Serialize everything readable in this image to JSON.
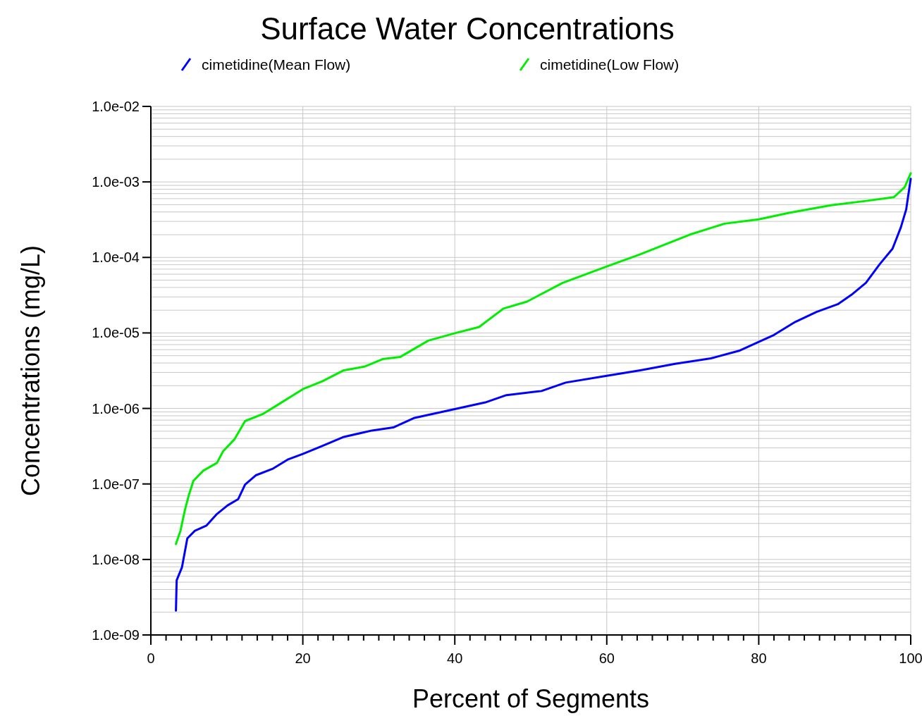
{
  "chart_data": {
    "type": "line",
    "title": "Surface Water Concentrations",
    "xlabel": "Percent of Segments",
    "ylabel": "Concentrations (mg/L)",
    "log": "y",
    "grid": true,
    "legend": "top",
    "line_style": "solid",
    "marker": "none",
    "xlim": [
      0,
      100
    ],
    "ylim": [
      1e-09,
      0.01
    ],
    "xticks": [
      0,
      {
        "value": 2,
        "label": null
      },
      {
        "value": 4,
        "label": null
      },
      {
        "value": 6,
        "label": null
      },
      {
        "value": 8,
        "label": null
      },
      {
        "value": 10,
        "label": null
      },
      {
        "value": 12,
        "label": null
      },
      {
        "value": 14,
        "label": null
      },
      {
        "value": 16,
        "label": null
      },
      {
        "value": 18,
        "label": null
      },
      20,
      {
        "value": 22,
        "label": null
      },
      {
        "value": 24,
        "label": null
      },
      {
        "value": 26,
        "label": null
      },
      {
        "value": 28,
        "label": null
      },
      {
        "value": 30,
        "label": null
      },
      {
        "value": 32,
        "label": null
      },
      {
        "value": 34,
        "label": null
      },
      {
        "value": 36,
        "label": null
      },
      {
        "value": 38,
        "label": null
      },
      40,
      {
        "value": 42,
        "label": null
      },
      {
        "value": 44,
        "label": null
      },
      {
        "value": 46,
        "label": null
      },
      {
        "value": 48,
        "label": null
      },
      {
        "value": 50,
        "label": null
      },
      {
        "value": 52,
        "label": null
      },
      {
        "value": 54,
        "label": null
      },
      {
        "value": 56,
        "label": null
      },
      {
        "value": 58,
        "label": null
      },
      60,
      {
        "value": 62,
        "label": null
      },
      {
        "value": 64,
        "label": null
      },
      {
        "value": 66,
        "label": null
      },
      {
        "value": 68,
        "label": null
      },
      {
        "value": 70,
        "label": null
      },
      {
        "value": 72,
        "label": null
      },
      {
        "value": 74,
        "label": null
      },
      {
        "value": 76,
        "label": null
      },
      {
        "value": 78,
        "label": null
      },
      80,
      {
        "value": 82,
        "label": null
      },
      {
        "value": 84,
        "label": null
      },
      {
        "value": 86,
        "label": null
      },
      {
        "value": 88,
        "label": null
      },
      {
        "value": 90,
        "label": null
      },
      {
        "value": 92,
        "label": null
      },
      {
        "value": 94,
        "label": null
      },
      {
        "value": 96,
        "label": null
      },
      {
        "value": 98,
        "label": null
      },
      100
    ],
    "yticks": [
      {
        "value": 1e-09,
        "label": "1.0e-09"
      },
      {
        "value": 2e-09,
        "label": null
      },
      {
        "value": 3e-09,
        "label": null
      },
      {
        "value": 4e-09,
        "label": null
      },
      {
        "value": 5e-09,
        "label": null
      },
      {
        "value": 6e-09,
        "label": null
      },
      {
        "value": 7e-09,
        "label": null
      },
      {
        "value": 8e-09,
        "label": null
      },
      {
        "value": 9e-09,
        "label": null
      },
      {
        "value": 1e-08,
        "label": "1.0e-08"
      },
      {
        "value": 2e-08,
        "label": null
      },
      {
        "value": 3e-08,
        "label": null
      },
      {
        "value": 4e-08,
        "label": null
      },
      {
        "value": 5e-08,
        "label": null
      },
      {
        "value": 6e-08,
        "label": null
      },
      {
        "value": 7e-08,
        "label": null
      },
      {
        "value": 8e-08,
        "label": null
      },
      {
        "value": 9e-08,
        "label": null
      },
      {
        "value": 1e-07,
        "label": "1.0e-07"
      },
      {
        "value": 2e-07,
        "label": null
      },
      {
        "value": 3e-07,
        "label": null
      },
      {
        "value": 4e-07,
        "label": null
      },
      {
        "value": 5e-07,
        "label": null
      },
      {
        "value": 6e-07,
        "label": null
      },
      {
        "value": 7e-07,
        "label": null
      },
      {
        "value": 8e-07,
        "label": null
      },
      {
        "value": 9e-07,
        "label": null
      },
      {
        "value": 1e-06,
        "label": "1.0e-06"
      },
      {
        "value": 2e-06,
        "label": null
      },
      {
        "value": 3e-06,
        "label": null
      },
      {
        "value": 4e-06,
        "label": null
      },
      {
        "value": 5e-06,
        "label": null
      },
      {
        "value": 6e-06,
        "label": null
      },
      {
        "value": 7e-06,
        "label": null
      },
      {
        "value": 8e-06,
        "label": null
      },
      {
        "value": 9e-06,
        "label": null
      },
      {
        "value": 1e-05,
        "label": "1.0e-05"
      },
      {
        "value": 2e-05,
        "label": null
      },
      {
        "value": 3e-05,
        "label": null
      },
      {
        "value": 4e-05,
        "label": null
      },
      {
        "value": 5e-05,
        "label": null
      },
      {
        "value": 6e-05,
        "label": null
      },
      {
        "value": 7e-05,
        "label": null
      },
      {
        "value": 8e-05,
        "label": null
      },
      {
        "value": 9e-05,
        "label": null
      },
      {
        "value": 0.0001,
        "label": "1.0e-04"
      },
      {
        "value": 0.0002,
        "label": null
      },
      {
        "value": 0.0003,
        "label": null
      },
      {
        "value": 0.0004,
        "label": null
      },
      {
        "value": 0.0005,
        "label": null
      },
      {
        "value": 0.0006,
        "label": null
      },
      {
        "value": 0.0007,
        "label": null
      },
      {
        "value": 0.0008,
        "label": null
      },
      {
        "value": 0.0009,
        "label": null
      },
      {
        "value": 0.001,
        "label": "1.0e-03"
      },
      {
        "value": 0.002,
        "label": null
      },
      {
        "value": 0.003,
        "label": null
      },
      {
        "value": 0.004,
        "label": null
      },
      {
        "value": 0.005,
        "label": null
      },
      {
        "value": 0.006,
        "label": null
      },
      {
        "value": 0.007,
        "label": null
      },
      {
        "value": 0.008,
        "label": null
      },
      {
        "value": 0.009,
        "label": null
      },
      {
        "value": 0.01,
        "label": "1.0e-02"
      }
    ],
    "series": [
      {
        "name": "cimetidine(Mean Flow)",
        "color": "#0000ff",
        "x": [
          3.3,
          3.4,
          4.1,
          4.8,
          5.8,
          7.3,
          8.7,
          10.1,
          11.5,
          12.4,
          13.8,
          16.1,
          18,
          20,
          22.6,
          25.4,
          29.1,
          31.9,
          34.7,
          40,
          44,
          46.8,
          51.4,
          54.6,
          60,
          64.4,
          69,
          73.7,
          77.4,
          80,
          82,
          84.8,
          87.6,
          90.4,
          92.2,
          94.1,
          95.9,
          97.6,
          98.7,
          99.4,
          100
        ],
        "values": [
          2.1e-09,
          5.3e-09,
          7.9e-09,
          1.9e-08,
          2.4e-08,
          2.8e-08,
          4e-08,
          5.2e-08,
          6.3e-08,
          9.8e-08,
          1.3e-07,
          1.6e-07,
          2.1e-07,
          2.5e-07,
          3.2e-07,
          4.2e-07,
          5.1e-07,
          5.6e-07,
          7.5e-07,
          9.8e-07,
          1.2e-06,
          1.5e-06,
          1.7e-06,
          2.2e-06,
          2.7e-06,
          3.2e-06,
          3.9e-06,
          4.6e-06,
          5.8e-06,
          7.6e-06,
          9.4e-06,
          1.4e-05,
          1.9e-05,
          2.4e-05,
          3.2e-05,
          4.6e-05,
          8.1e-05,
          0.00013,
          0.00025,
          0.00043,
          0.0011
        ]
      },
      {
        "name": "cimetidine(Low Flow)",
        "color": "#00ee00",
        "x": [
          3.3,
          3.9,
          4.5,
          5,
          5.6,
          6.9,
          8.7,
          9.5,
          11,
          12.4,
          14.7,
          16.6,
          20,
          22.6,
          25.4,
          28.2,
          30.5,
          32.8,
          36.5,
          40,
          43.2,
          46.4,
          49.5,
          54.2,
          60,
          64.4,
          70.9,
          75.5,
          80,
          84,
          89.5,
          94.1,
          97.8,
          99.2,
          100
        ],
        "values": [
          1.6e-08,
          2.4e-08,
          4.6e-08,
          7.1e-08,
          1.1e-07,
          1.5e-07,
          1.9e-07,
          2.7e-07,
          3.9e-07,
          6.8e-07,
          8.4e-07,
          1.1e-06,
          1.8e-06,
          2.3e-06,
          3.2e-06,
          3.6e-06,
          4.5e-06,
          4.8e-06,
          7.9e-06,
          9.9e-06,
          1.2e-05,
          2.1e-05,
          2.6e-05,
          4.6e-05,
          7.6e-05,
          0.00011,
          0.0002,
          0.00028,
          0.00032,
          0.00039,
          0.00049,
          0.00056,
          0.00063,
          0.00085,
          0.0013
        ]
      }
    ]
  }
}
